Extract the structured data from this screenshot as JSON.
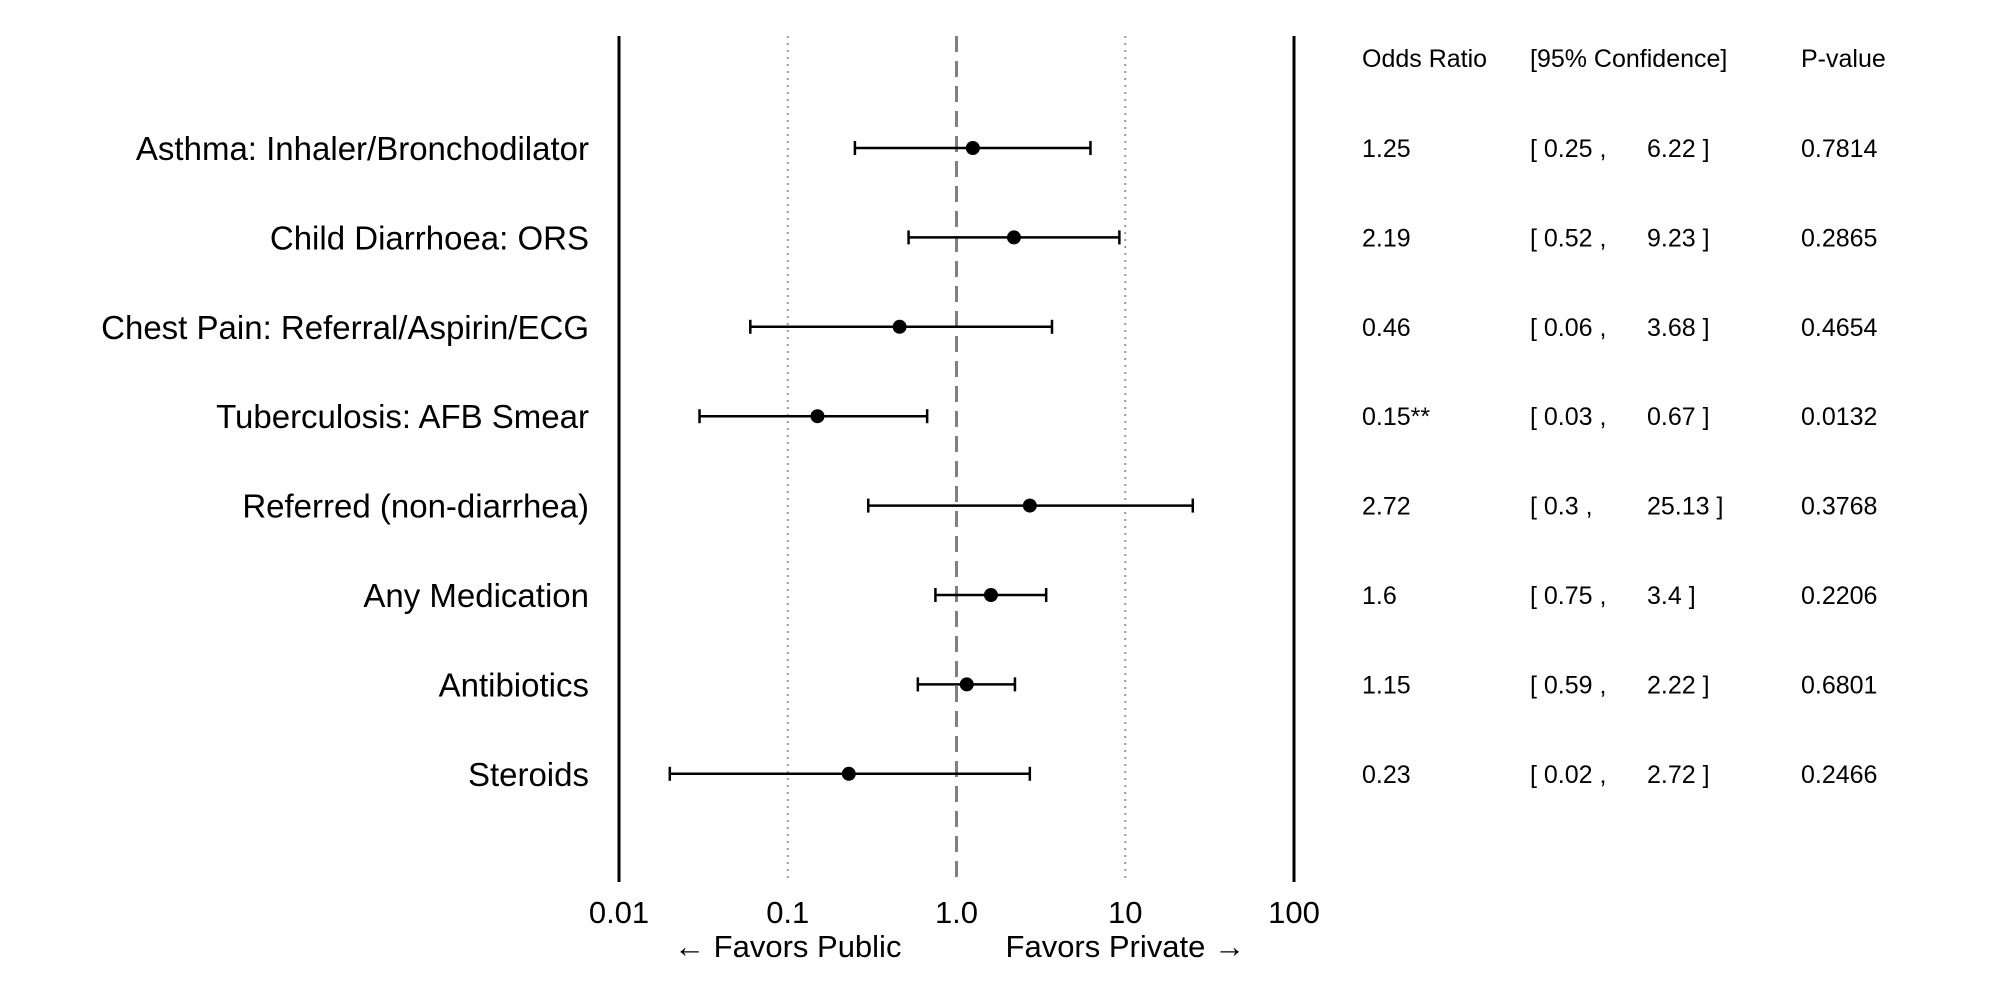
{
  "chart_data": {
    "type": "forest",
    "x_scale": "log",
    "xlim": [
      0.01,
      100
    ],
    "x_ticks": [
      "0.01",
      "0.1",
      "1.0",
      "10",
      "100"
    ],
    "reference_line": 1.0,
    "gridlines_at": [
      0.1,
      10
    ],
    "direction_labels": {
      "left": "← Favors Public",
      "right": "Favors Private →"
    },
    "table_headers": {
      "odds_ratio": "Odds Ratio",
      "confidence": "[95% Confidence]",
      "p_value": "P-value"
    },
    "rows": [
      {
        "label": "Asthma: Inhaler/Bronchodilator",
        "or": 1.25,
        "lo": 0.25,
        "hi": 6.22,
        "or_text": "1.25",
        "lo_text": "[ 0.25 ,",
        "hi_text": "6.22 ]",
        "p_text": "0.7814"
      },
      {
        "label": "Child Diarrhoea: ORS",
        "or": 2.19,
        "lo": 0.52,
        "hi": 9.23,
        "or_text": "2.19",
        "lo_text": "[ 0.52 ,",
        "hi_text": "9.23 ]",
        "p_text": "0.2865"
      },
      {
        "label": "Chest Pain: Referral/Aspirin/ECG",
        "or": 0.46,
        "lo": 0.06,
        "hi": 3.68,
        "or_text": "0.46",
        "lo_text": "[ 0.06 ,",
        "hi_text": "3.68 ]",
        "p_text": "0.4654"
      },
      {
        "label": "Tuberculosis: AFB Smear",
        "or": 0.15,
        "lo": 0.03,
        "hi": 0.67,
        "or_text": "0.15**",
        "lo_text": "[ 0.03 ,",
        "hi_text": "0.67 ]",
        "p_text": "0.0132"
      },
      {
        "label": "Referred (non-diarrhea)",
        "or": 2.72,
        "lo": 0.3,
        "hi": 25.13,
        "or_text": "2.72",
        "lo_text": "[ 0.3 ,",
        "hi_text": "25.13 ]",
        "p_text": "0.3768"
      },
      {
        "label": "Any Medication",
        "or": 1.6,
        "lo": 0.75,
        "hi": 3.4,
        "or_text": "1.6",
        "lo_text": "[ 0.75 ,",
        "hi_text": "3.4 ]",
        "p_text": "0.2206"
      },
      {
        "label": "Antibiotics",
        "or": 1.15,
        "lo": 0.59,
        "hi": 2.22,
        "or_text": "1.15",
        "lo_text": "[ 0.59 ,",
        "hi_text": "2.22 ]",
        "p_text": "0.6801"
      },
      {
        "label": "Steroids",
        "or": 0.23,
        "lo": 0.02,
        "hi": 2.72,
        "or_text": "0.23",
        "lo_text": "[ 0.02 ,",
        "hi_text": "2.72 ]",
        "p_text": "0.2466"
      }
    ]
  }
}
